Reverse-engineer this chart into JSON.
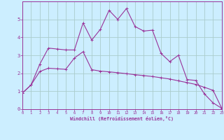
{
  "xlabel": "Windchill (Refroidissement éolien,°C)",
  "background_color": "#cceeff",
  "grid_color": "#aacccc",
  "line_color": "#993399",
  "spine_color": "#993399",
  "xmin": 0,
  "xmax": 23,
  "ymin": 0,
  "ymax": 6,
  "yticks": [
    0,
    1,
    2,
    3,
    4,
    5
  ],
  "xticks": [
    0,
    1,
    2,
    3,
    4,
    5,
    6,
    7,
    8,
    9,
    10,
    11,
    12,
    13,
    14,
    15,
    16,
    17,
    18,
    19,
    20,
    21,
    22,
    23
  ],
  "line1_x": [
    0,
    1,
    2,
    3,
    4,
    5,
    6,
    7,
    8,
    9,
    10,
    11,
    12,
    13,
    14,
    15,
    16,
    17,
    18,
    19,
    20,
    21,
    22,
    23
  ],
  "line1_y": [
    0.9,
    1.35,
    2.5,
    3.4,
    3.35,
    3.3,
    3.3,
    4.8,
    3.85,
    4.45,
    5.5,
    5.0,
    5.6,
    4.6,
    4.35,
    4.4,
    3.1,
    2.65,
    3.0,
    1.65,
    1.6,
    0.85,
    0.35,
    0.05
  ],
  "line2_x": [
    0,
    1,
    2,
    3,
    4,
    5,
    6,
    7,
    8,
    9,
    10,
    11,
    12,
    13,
    14,
    15,
    16,
    17,
    18,
    19,
    20,
    21,
    22,
    23
  ],
  "line2_y": [
    0.9,
    1.35,
    2.1,
    2.28,
    2.25,
    2.22,
    2.85,
    3.2,
    2.2,
    2.12,
    2.08,
    2.03,
    1.98,
    1.92,
    1.87,
    1.82,
    1.75,
    1.68,
    1.58,
    1.48,
    1.38,
    1.22,
    1.05,
    0.05
  ]
}
